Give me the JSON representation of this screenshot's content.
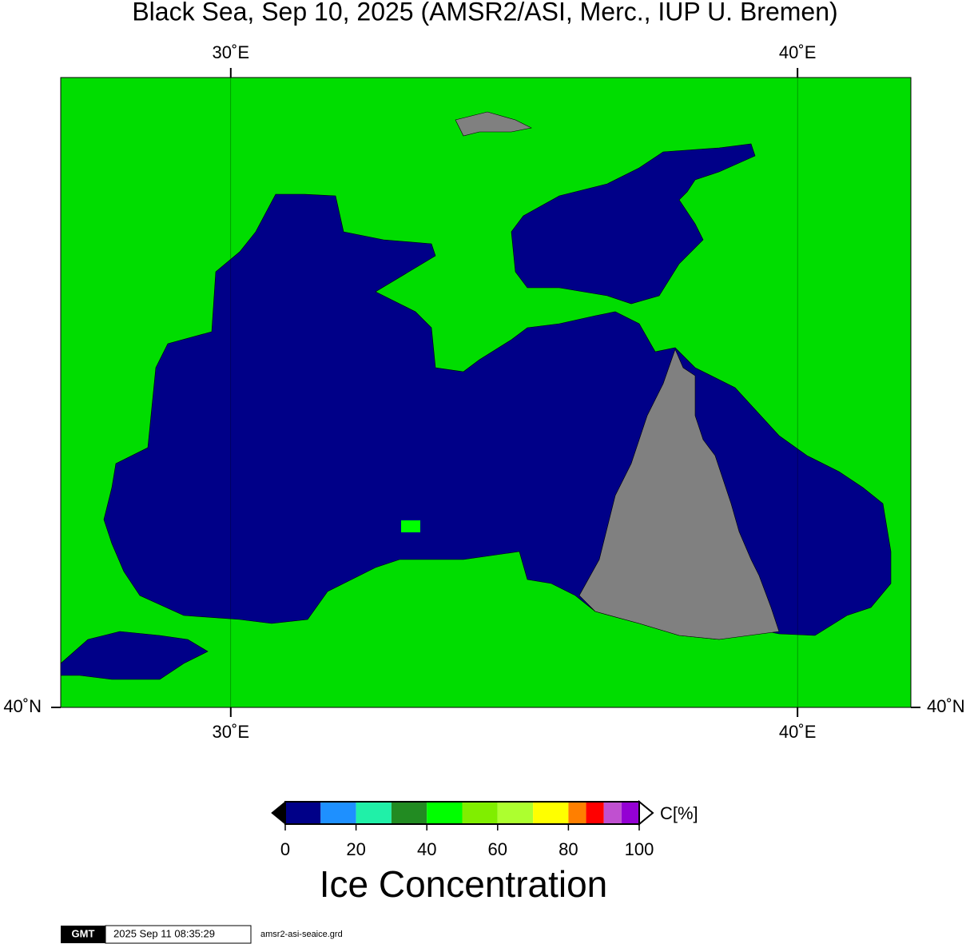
{
  "title": "Black Sea, Sep 10, 2025 (AMSR2/ASI, Merc., IUP U. Bremen)",
  "map": {
    "xlim": [
      27,
      42
    ],
    "xticks": [
      {
        "value": 30,
        "label": "30˚E"
      },
      {
        "value": 40,
        "label": "40˚E"
      }
    ],
    "yticks": [
      {
        "value": 40,
        "label": "40˚N"
      }
    ]
  },
  "colorbar": {
    "bins": [
      0,
      10,
      20,
      30,
      40,
      50,
      60,
      70,
      80,
      85,
      90,
      95,
      100
    ],
    "colors": [
      "#000088",
      "#1e90ff",
      "#20f0a8",
      "#228b22",
      "#00ff00",
      "#80ee00",
      "#adff2f",
      "#ffff00",
      "#ff7f00",
      "#ff0000",
      "#c050d0",
      "#9400d3"
    ],
    "xlim": [
      0,
      100
    ],
    "ticks": [
      0,
      20,
      40,
      60,
      80,
      100
    ],
    "unit_label": "C[%]",
    "title": "Ice Concentration"
  },
  "footer": {
    "logo": "GMT",
    "timestamp": "2025 Sep 11 08:35:29",
    "file": "amsr2-asi-seaice.grd"
  }
}
